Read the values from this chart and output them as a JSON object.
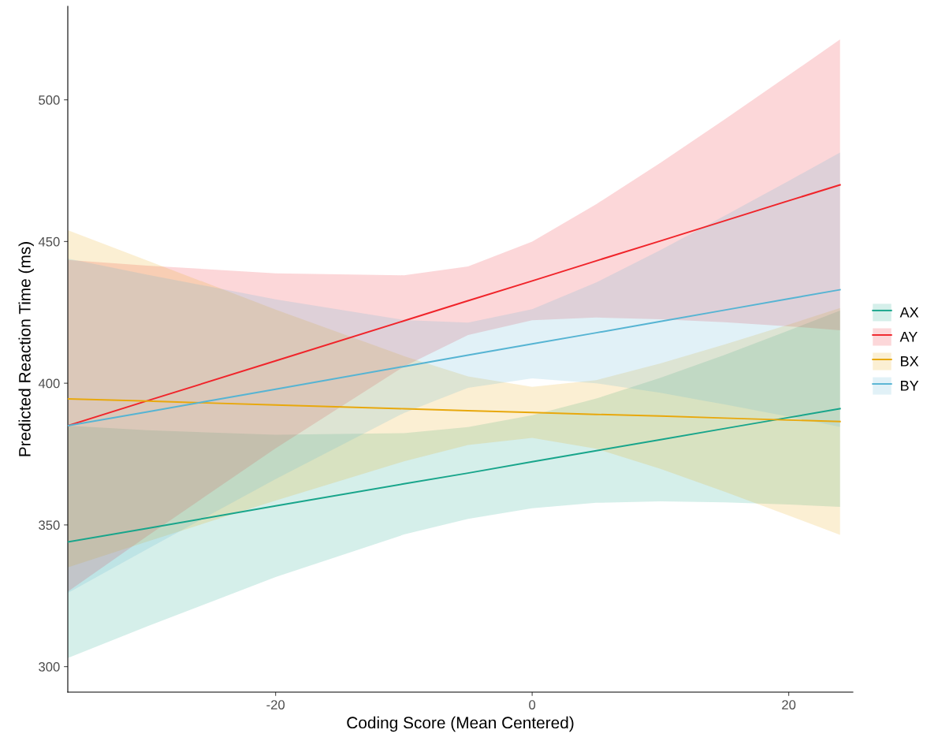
{
  "chart_data": {
    "type": "line",
    "xlabel": "Coding Score (Mean Centered)",
    "ylabel": "Predicted Reaction Time (ms)",
    "x": [
      -36.2,
      -30,
      -20,
      -10,
      -5,
      0,
      5,
      10,
      15,
      20,
      24
    ],
    "xlim": [
      -36.2,
      25
    ],
    "xticks": [
      -20,
      0,
      20
    ],
    "ylim": [
      291,
      533
    ],
    "yticks": [
      300,
      350,
      400,
      450,
      500
    ],
    "grid": false,
    "legend": "right",
    "marker": "none",
    "line_style": "solid",
    "series": [
      {
        "name": "AX",
        "color": "#18a58b",
        "values": [
          344,
          348.8,
          356.7,
          364.5,
          368.3,
          372.3,
          376.2,
          380.1,
          384,
          387.9,
          391
        ],
        "upper": [
          385,
          383.4,
          381.8,
          382.4,
          384.5,
          388.7,
          394.6,
          401.9,
          410,
          418.6,
          425.6
        ],
        "lower": [
          303,
          314.2,
          331.6,
          346.6,
          352.1,
          355.9,
          357.8,
          358.3,
          358,
          357.2,
          356.4
        ]
      },
      {
        "name": "AY",
        "color": "#f0242a",
        "values": [
          385,
          393.8,
          407.9,
          422,
          429.1,
          436.1,
          443.2,
          450.2,
          457.3,
          464.4,
          470
        ],
        "upper": [
          443.5,
          441.5,
          438.8,
          438.1,
          441.2,
          450,
          463.2,
          477.8,
          493.1,
          508.7,
          521.3
        ],
        "lower": [
          326.5,
          346.1,
          377,
          405.9,
          417,
          422.2,
          423.2,
          422.6,
          421.5,
          420.1,
          418.7
        ]
      },
      {
        "name": "BX",
        "color": "#e8a80c",
        "values": [
          394.5,
          393.7,
          392.3,
          391,
          390.3,
          389.7,
          389,
          388.4,
          387.7,
          387,
          386.5
        ],
        "upper": [
          454,
          443.3,
          426,
          409.6,
          402.4,
          398.7,
          401.1,
          407,
          413.7,
          420.7,
          426.5
        ],
        "lower": [
          335,
          344.1,
          358.6,
          372.4,
          378.2,
          380.7,
          376.9,
          369.8,
          361.7,
          353.3,
          346.5
        ]
      },
      {
        "name": "BY",
        "color": "#56b4d3",
        "values": [
          385,
          389.9,
          397.9,
          405.9,
          409.9,
          413.9,
          417.8,
          421.8,
          425.8,
          429.8,
          433
        ],
        "upper": [
          444,
          438.3,
          429.6,
          422.3,
          421.4,
          426.1,
          435.6,
          447,
          459.1,
          471.4,
          481.4
        ],
        "lower": [
          326,
          341.5,
          366.2,
          389.5,
          398.4,
          401.7,
          400,
          396.6,
          392.5,
          388.2,
          384.6
        ]
      }
    ]
  }
}
